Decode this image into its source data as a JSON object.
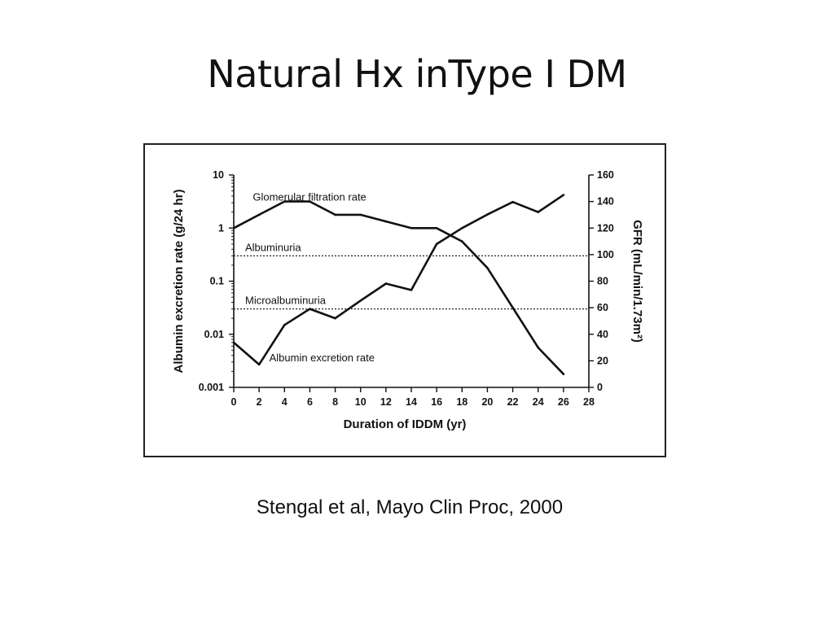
{
  "slide": {
    "title": "Natural Hx inType I DM",
    "citation": "Stengal et al, Mayo Clin Proc, 2000"
  },
  "chart_data": {
    "type": "line",
    "xlabel": "Duration of IDDM (yr)",
    "ylabel_left": "Albumin excretion rate (g/24 hr)",
    "ylabel_right": "GFR (mL/min/1.73m²)",
    "x_ticks": [
      0,
      2,
      4,
      6,
      8,
      10,
      12,
      14,
      16,
      18,
      20,
      22,
      24,
      26,
      28
    ],
    "x_tick_labels": [
      "0",
      "2",
      "4",
      "6",
      "8",
      "10",
      "12",
      "14",
      "16",
      "18",
      "20",
      "22",
      "24",
      "26",
      "28"
    ],
    "xlim": [
      0,
      28
    ],
    "left_axis": {
      "scale": "log",
      "ylim": [
        0.001,
        10
      ],
      "ticks": [
        0.001,
        0.01,
        0.1,
        1,
        10
      ],
      "tick_labels": [
        "0.001",
        "0.01",
        "0.1",
        "1",
        "10"
      ]
    },
    "right_axis": {
      "scale": "linear",
      "ylim": [
        0,
        160
      ],
      "ticks": [
        0,
        20,
        40,
        60,
        80,
        100,
        120,
        140,
        160
      ],
      "tick_labels": [
        "0",
        "20",
        "40",
        "60",
        "80",
        "100",
        "120",
        "140",
        "160"
      ]
    },
    "series": [
      {
        "name": "Glomerular filtration rate",
        "axis": "right",
        "x": [
          0,
          2,
          4,
          6,
          8,
          10,
          12,
          14,
          16,
          18,
          20,
          22,
          24,
          26
        ],
        "y": [
          120,
          130,
          140,
          140,
          130,
          130,
          125,
          120,
          120,
          110,
          90,
          60,
          30,
          10
        ]
      },
      {
        "name": "Albumin excretion rate",
        "axis": "left",
        "x": [
          0,
          2,
          4,
          6,
          8,
          10,
          12,
          14,
          16,
          18,
          20,
          22,
          24,
          26
        ],
        "y": [
          0.007,
          0.0027,
          0.015,
          0.03,
          0.02,
          0.043,
          0.09,
          0.068,
          0.5,
          1.0,
          1.8,
          3.1,
          2.0,
          4.2
        ]
      }
    ],
    "reference_lines": [
      {
        "label": "Albuminuria",
        "axis": "left",
        "value": 0.3
      },
      {
        "label": "Microalbuminuria",
        "axis": "left",
        "value": 0.03
      }
    ]
  }
}
